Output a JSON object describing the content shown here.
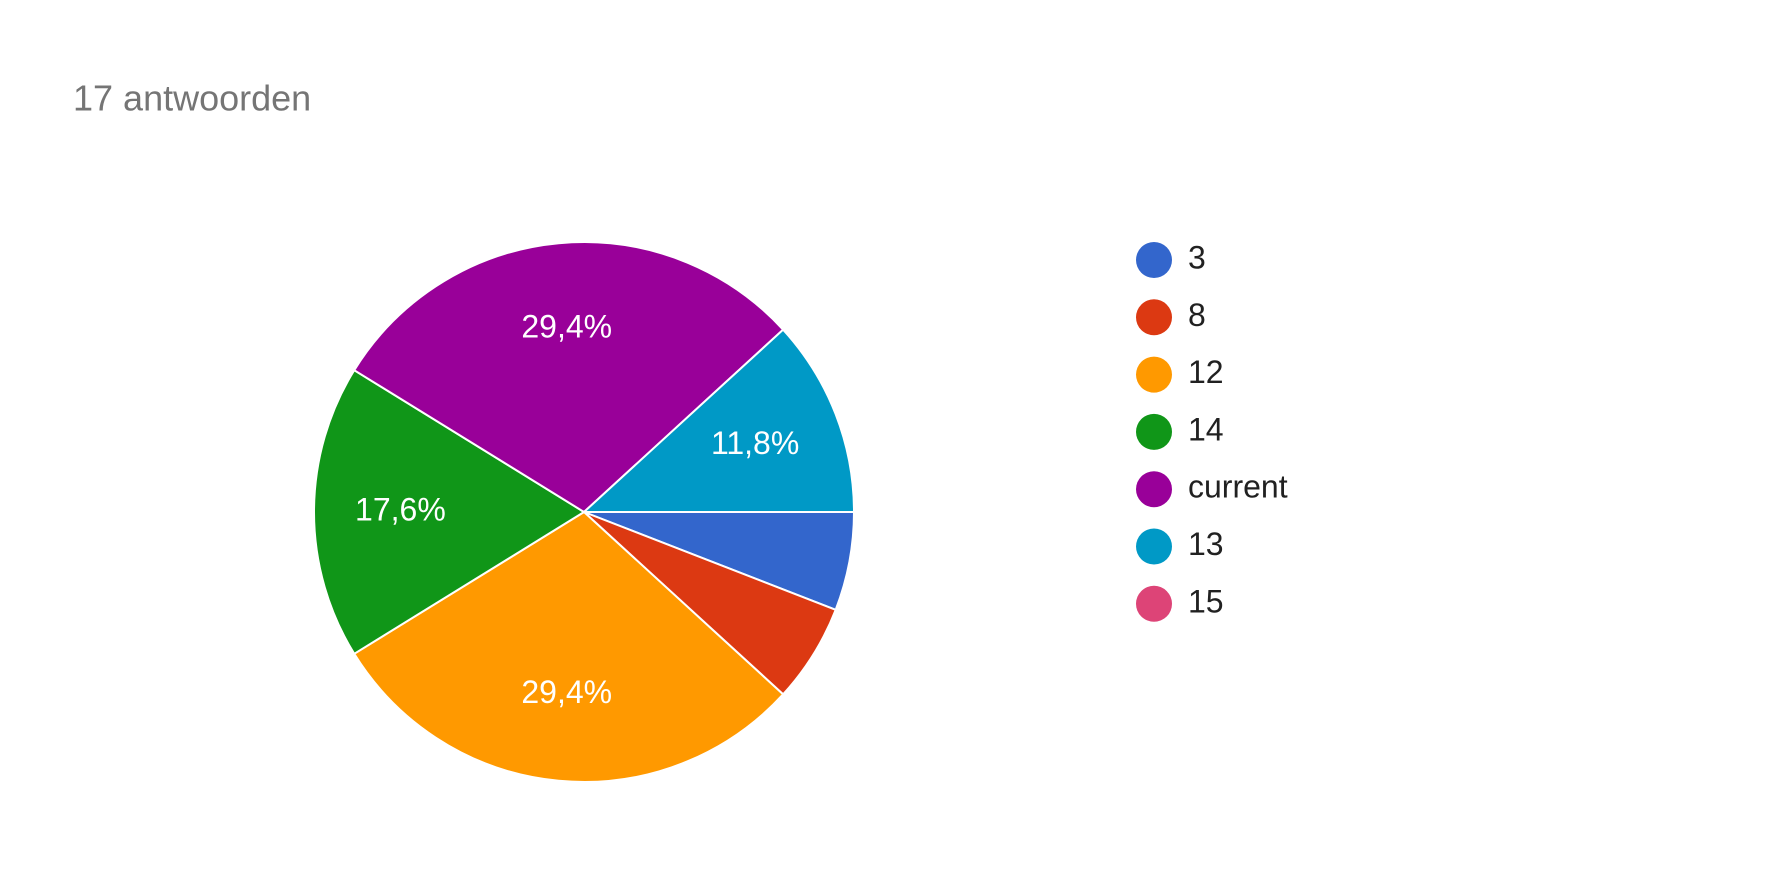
{
  "chart_data": {
    "type": "pie",
    "title": "17 antwoorden",
    "categories": [
      "3",
      "8",
      "12",
      "14",
      "current",
      "13",
      "15"
    ],
    "values": [
      5.9,
      5.9,
      29.4,
      17.6,
      29.4,
      11.8,
      0
    ],
    "value_labels": [
      null,
      null,
      "29,4%",
      "17,6%",
      "29,4%",
      "11,8%",
      null
    ],
    "colors": [
      "#3366cc",
      "#dc3912",
      "#ff9900",
      "#109618",
      "#990099",
      "#0099c6",
      "#dd4477"
    ],
    "legend": "right"
  }
}
